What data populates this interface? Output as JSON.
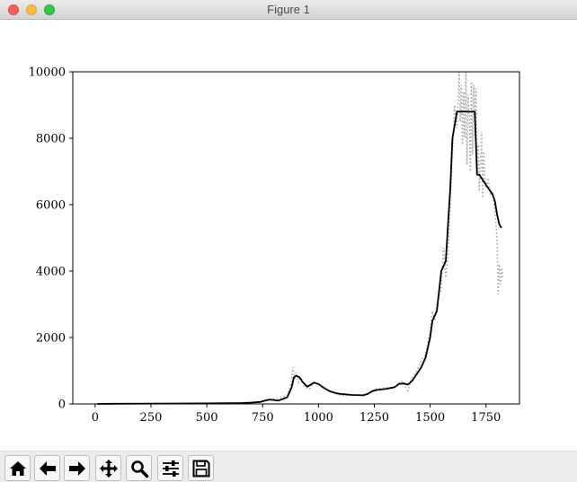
{
  "window": {
    "title": "Figure 1"
  },
  "chart_data": {
    "type": "line",
    "xlim": [
      -100,
      1900
    ],
    "ylim": [
      0,
      10000
    ],
    "x_ticks": [
      0,
      250,
      500,
      750,
      1000,
      1250,
      1500,
      1750
    ],
    "y_ticks": [
      0,
      2000,
      4000,
      6000,
      8000,
      10000
    ],
    "grid": false,
    "series": [
      {
        "style": "solid",
        "color": "#000000",
        "x": [
          10,
          100,
          300,
          500,
          650,
          700,
          740,
          760,
          780,
          800,
          820,
          860,
          880,
          890,
          900,
          915,
          930,
          950,
          960,
          980,
          1000,
          1020,
          1050,
          1080,
          1100,
          1150,
          1200,
          1220,
          1240,
          1260,
          1300,
          1340,
          1360,
          1380,
          1400,
          1420,
          1440,
          1460,
          1480,
          1500,
          1510,
          1530,
          1550,
          1570,
          1590,
          1600,
          1620,
          1630,
          1700,
          1710,
          1720,
          1740,
          1760,
          1780,
          1790,
          1800,
          1810,
          1820
        ],
        "y": [
          0,
          5,
          10,
          15,
          25,
          40,
          60,
          100,
          130,
          120,
          100,
          200,
          500,
          800,
          850,
          800,
          650,
          520,
          560,
          640,
          600,
          500,
          380,
          320,
          300,
          270,
          260,
          300,
          380,
          420,
          450,
          500,
          600,
          620,
          580,
          700,
          900,
          1100,
          1400,
          2000,
          2500,
          2800,
          4000,
          4300,
          6500,
          8000,
          8800,
          8800,
          8800,
          6900,
          6900,
          6700,
          6500,
          6300,
          6100,
          5700,
          5400,
          5300
        ]
      },
      {
        "style": "dotted",
        "color": "#a8a8a8",
        "x": [
          10,
          300,
          600,
          750,
          800,
          860,
          880,
          885,
          890,
          895,
          900,
          910,
          920,
          940,
          960,
          980,
          1000,
          1050,
          1100,
          1150,
          1200,
          1230,
          1250,
          1300,
          1350,
          1370,
          1400,
          1420,
          1440,
          1460,
          1480,
          1500,
          1510,
          1520,
          1530,
          1550,
          1560,
          1570,
          1580,
          1590,
          1600,
          1610,
          1620,
          1630,
          1635,
          1640,
          1645,
          1650,
          1655,
          1660,
          1665,
          1670,
          1675,
          1680,
          1685,
          1690,
          1695,
          1700,
          1705,
          1710,
          1715,
          1720,
          1725,
          1730,
          1735,
          1740,
          1745,
          1750,
          1760,
          1770,
          1780,
          1790,
          1800,
          1805,
          1810,
          1815,
          1820,
          1825
        ],
        "y": [
          0,
          10,
          20,
          60,
          150,
          250,
          700,
          1100,
          900,
          750,
          950,
          650,
          800,
          500,
          450,
          650,
          580,
          400,
          250,
          280,
          250,
          300,
          450,
          480,
          520,
          700,
          400,
          800,
          1000,
          1300,
          1500,
          2200,
          2800,
          2500,
          3000,
          3500,
          4700,
          3800,
          4500,
          6000,
          7500,
          9000,
          8300,
          10000,
          8500,
          9600,
          7800,
          9400,
          8000,
          10000,
          7200,
          9300,
          8600,
          7000,
          9700,
          7500,
          9600,
          8000,
          9500,
          7000,
          7800,
          6400,
          7200,
          8200,
          6200,
          7600,
          6800,
          6500,
          6800,
          6300,
          6400,
          5800,
          5000,
          3300,
          4200,
          3600,
          4100,
          3800
        ]
      }
    ]
  },
  "toolbar": {
    "buttons": [
      {
        "id": "home",
        "icon": "home-icon"
      },
      {
        "id": "back",
        "icon": "arrow-left-icon"
      },
      {
        "id": "forward",
        "icon": "arrow-right-icon"
      },
      {
        "id": "pan",
        "icon": "move-icon"
      },
      {
        "id": "zoom",
        "icon": "magnifier-icon"
      },
      {
        "id": "configure",
        "icon": "sliders-icon"
      },
      {
        "id": "save",
        "icon": "floppy-disk-icon"
      }
    ]
  }
}
